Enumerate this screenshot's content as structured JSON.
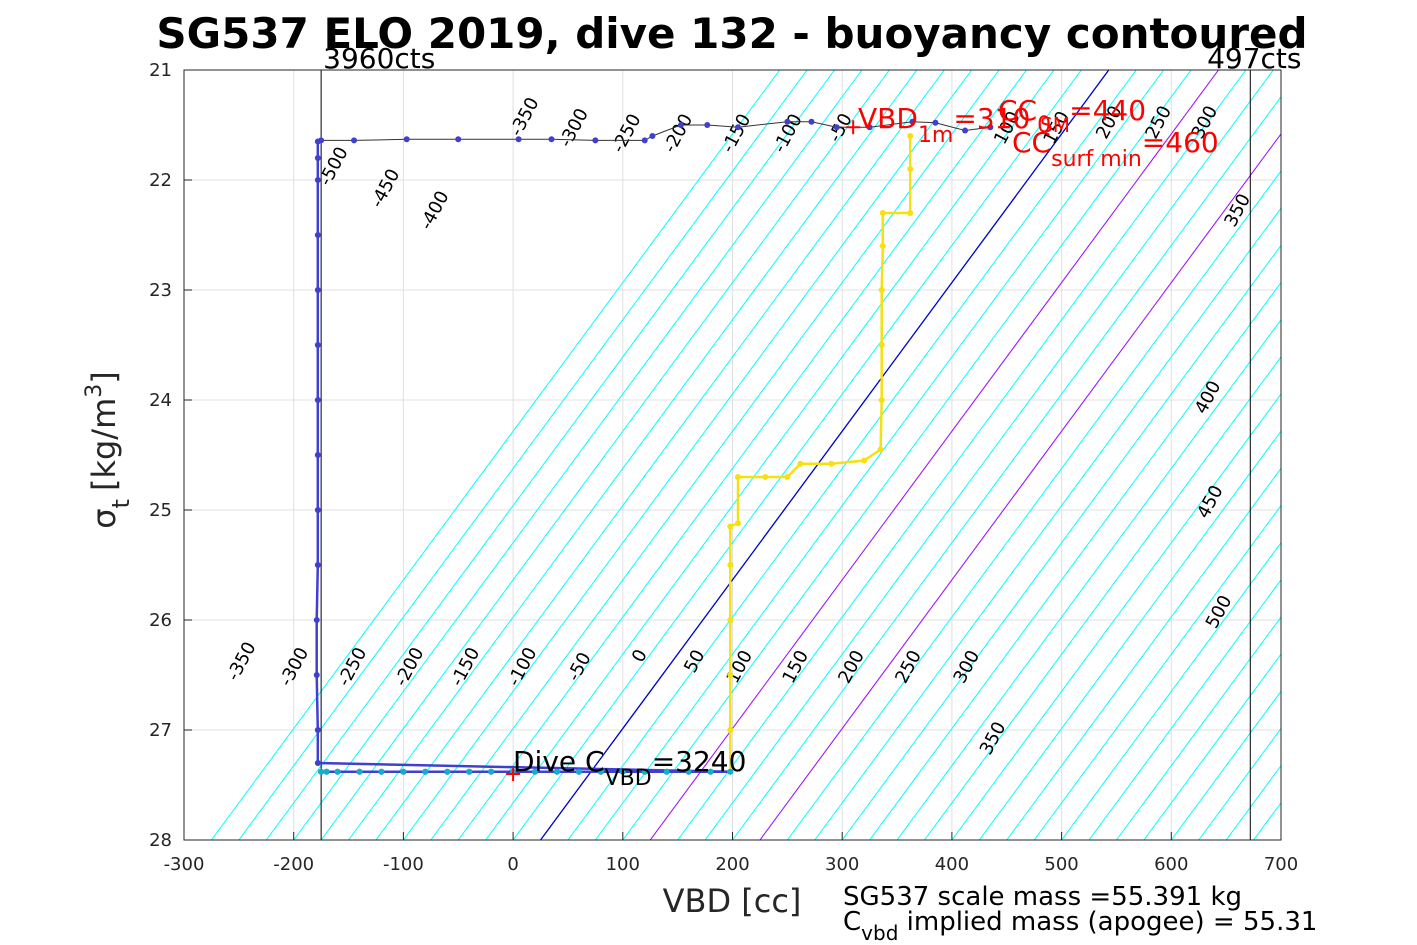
{
  "chart_data": {
    "type": "scatter",
    "title": "SG537 ELO 2019, dive 132 - buoyancy contoured",
    "xlabel": "VBD [cc]",
    "ylabel": "σ_t [kg/m^3]",
    "ylabel_parts": {
      "sigma": "σ",
      "sub": "t",
      "unit_open": "[kg/m",
      "sup": "3",
      "unit_close": "]"
    },
    "xlim": [
      -300,
      700
    ],
    "ylim": [
      21,
      28
    ],
    "y_reversed": true,
    "grid": true,
    "x_ticks": [
      "-300",
      "-200",
      "-100",
      "0",
      "100",
      "200",
      "300",
      "400",
      "500",
      "600",
      "700"
    ],
    "y_ticks": [
      "21",
      "22",
      "23",
      "24",
      "25",
      "26",
      "27",
      "28"
    ],
    "counts_left": {
      "x": -175,
      "label": "3960cts"
    },
    "counts_right": {
      "x": 672,
      "label": "497cts"
    },
    "buoyancy_contours": {
      "x_at_28": [
        -275,
        -250,
        -225,
        -200,
        -175,
        -150,
        -125,
        -100,
        -75,
        -50,
        -25,
        0,
        25,
        50,
        75,
        100,
        125,
        150,
        175,
        200,
        225,
        250,
        275,
        300,
        325,
        350,
        375,
        400,
        425,
        450,
        475,
        500,
        525,
        550,
        575,
        600,
        625,
        650,
        675,
        700,
        725,
        750,
        775,
        800,
        825,
        850,
        875,
        900,
        925
      ],
      "slope_cc_per_sigma": 74,
      "color": "#00ffff",
      "zero_color": "#0000cc",
      "zero_x_at_28": 25,
      "magenta": [
        {
          "x_at_28": 125,
          "color": "#bf00ff"
        },
        {
          "x_at_28": 225,
          "color": "#bf00ff"
        }
      ]
    },
    "contour_labels": [
      {
        "text": "-350",
        "x": -243,
        "y": 26.4
      },
      {
        "text": "-300",
        "x": -195,
        "y": 26.45
      },
      {
        "text": "-250",
        "x": -142,
        "y": 26.45
      },
      {
        "text": "-200",
        "x": -90,
        "y": 26.45
      },
      {
        "text": "-150",
        "x": -39,
        "y": 26.45
      },
      {
        "text": "-100",
        "x": 13,
        "y": 26.45
      },
      {
        "text": "-50",
        "x": 65,
        "y": 26.45
      },
      {
        "text": "0",
        "x": 120,
        "y": 26.35
      },
      {
        "text": "50",
        "x": 170,
        "y": 26.4
      },
      {
        "text": "100",
        "x": 211,
        "y": 26.45
      },
      {
        "text": "150",
        "x": 262,
        "y": 26.45
      },
      {
        "text": "200",
        "x": 313,
        "y": 26.45
      },
      {
        "text": "250",
        "x": 365,
        "y": 26.45
      },
      {
        "text": "300",
        "x": 418,
        "y": 26.45
      },
      {
        "text": "350",
        "x": 442,
        "y": 27.1
      },
      {
        "text": "-500",
        "x": -159,
        "y": 21.9
      },
      {
        "text": "-450",
        "x": -112,
        "y": 22.1
      },
      {
        "text": "-400",
        "x": -67,
        "y": 22.3
      },
      {
        "text": "-350",
        "x": 15,
        "y": 21.45
      },
      {
        "text": "-300",
        "x": 60,
        "y": 21.55
      },
      {
        "text": "-250",
        "x": 108,
        "y": 21.6
      },
      {
        "text": "-200",
        "x": 155,
        "y": 21.6
      },
      {
        "text": "-150",
        "x": 208,
        "y": 21.6
      },
      {
        "text": "-100",
        "x": 255,
        "y": 21.6
      },
      {
        "text": "-50",
        "x": 303,
        "y": 21.55
      },
      {
        "text": "100",
        "x": 455,
        "y": 21.55
      },
      {
        "text": "150",
        "x": 500,
        "y": 21.55
      },
      {
        "text": "200",
        "x": 548,
        "y": 21.5
      },
      {
        "text": "250",
        "x": 593,
        "y": 21.5
      },
      {
        "text": "300",
        "x": 635,
        "y": 21.5
      },
      {
        "text": "350",
        "x": 665,
        "y": 22.3
      },
      {
        "text": "400",
        "x": 638,
        "y": 24.0
      },
      {
        "text": "450",
        "x": 640,
        "y": 24.95
      },
      {
        "text": "500",
        "x": 648,
        "y": 25.95
      }
    ],
    "series": [
      {
        "name": "dive",
        "points": [
          [
            -175,
            27.38
          ],
          [
            -170,
            27.38
          ],
          [
            -160,
            27.38
          ],
          [
            -140,
            27.38
          ],
          [
            -120,
            27.38
          ],
          [
            -100,
            27.38
          ],
          [
            -80,
            27.38
          ],
          [
            -60,
            27.38
          ],
          [
            -40,
            27.38
          ],
          [
            -20,
            27.38
          ],
          [
            0,
            27.38
          ],
          [
            20,
            27.38
          ],
          [
            40,
            27.38
          ],
          [
            60,
            27.38
          ],
          [
            80,
            27.38
          ],
          [
            100,
            27.38
          ],
          [
            120,
            27.38
          ],
          [
            140,
            27.38
          ],
          [
            160,
            27.38
          ],
          [
            180,
            27.38
          ],
          [
            198,
            27.38
          ],
          [
            -178,
            27.3
          ],
          [
            -178,
            27.0
          ],
          [
            -179,
            26.5
          ],
          [
            -179,
            26.0
          ],
          [
            -178,
            25.5
          ],
          [
            -178,
            25.0
          ],
          [
            -178,
            24.5
          ],
          [
            -178,
            24.0
          ],
          [
            -178,
            23.5
          ],
          [
            -178,
            23.0
          ],
          [
            -178,
            22.5
          ],
          [
            -178,
            22.0
          ],
          [
            -178,
            21.8
          ],
          [
            -178,
            21.65
          ]
        ],
        "color": "#4040d0"
      },
      {
        "name": "surface",
        "points": [
          [
            -175,
            21.64
          ],
          [
            -145,
            21.64
          ],
          [
            -97,
            21.63
          ],
          [
            -50,
            21.63
          ],
          [
            5,
            21.63
          ],
          [
            35,
            21.63
          ],
          [
            75,
            21.64
          ],
          [
            120,
            21.64
          ],
          [
            127,
            21.6
          ],
          [
            153,
            21.5
          ],
          [
            177,
            21.5
          ],
          [
            205,
            21.52
          ],
          [
            250,
            21.47
          ],
          [
            272,
            21.47
          ],
          [
            295,
            21.52
          ],
          [
            325,
            21.52
          ],
          [
            364,
            21.47
          ],
          [
            385,
            21.48
          ],
          [
            412,
            21.55
          ],
          [
            435,
            21.52
          ]
        ],
        "color": "#4040d0"
      },
      {
        "name": "climb",
        "points": [
          [
            198,
            27.38
          ],
          [
            198,
            27.0
          ],
          [
            198,
            26.5
          ],
          [
            198,
            26.0
          ],
          [
            198,
            25.5
          ],
          [
            198,
            25.15
          ],
          [
            205,
            25.12
          ],
          [
            205,
            24.7
          ],
          [
            230,
            24.7
          ],
          [
            250,
            24.7
          ],
          [
            262,
            24.58
          ],
          [
            290,
            24.58
          ],
          [
            320,
            24.55
          ],
          [
            335,
            24.45
          ],
          [
            336,
            24.0
          ],
          [
            336,
            23.5
          ],
          [
            336,
            23.0
          ],
          [
            337,
            22.6
          ],
          [
            337,
            22.3
          ],
          [
            362,
            22.3
          ],
          [
            362,
            21.9
          ],
          [
            362,
            21.6
          ]
        ],
        "color": "#f5e010"
      }
    ],
    "markers": [
      {
        "label": "Dive C_VBD =3240",
        "x": 0,
        "y": 27.4
      },
      {
        "label": "VBD_1m =310",
        "x": 310,
        "y": 21.52
      }
    ],
    "annotations": {
      "dive_cvbd": {
        "main": "Dive C",
        "sub": "VBD",
        "value": "=3240"
      },
      "vbd_1m": {
        "main": "VBD",
        "sub": "1m",
        "value": "=310"
      },
      "cc0": {
        "text": "CC",
        "sub": "0",
        "value": "=440"
      },
      "ccsurf": {
        "text": "CC",
        "sub": "surf min",
        "value": "=460"
      },
      "sm": {
        "text": "SM"
      }
    }
  },
  "footer": {
    "scale_mass": "SG537 scale mass =55.391 kg",
    "implied_main": "C",
    "implied_sub": "vbd",
    "implied_rest": " implied mass (apogee) = 55.31"
  }
}
